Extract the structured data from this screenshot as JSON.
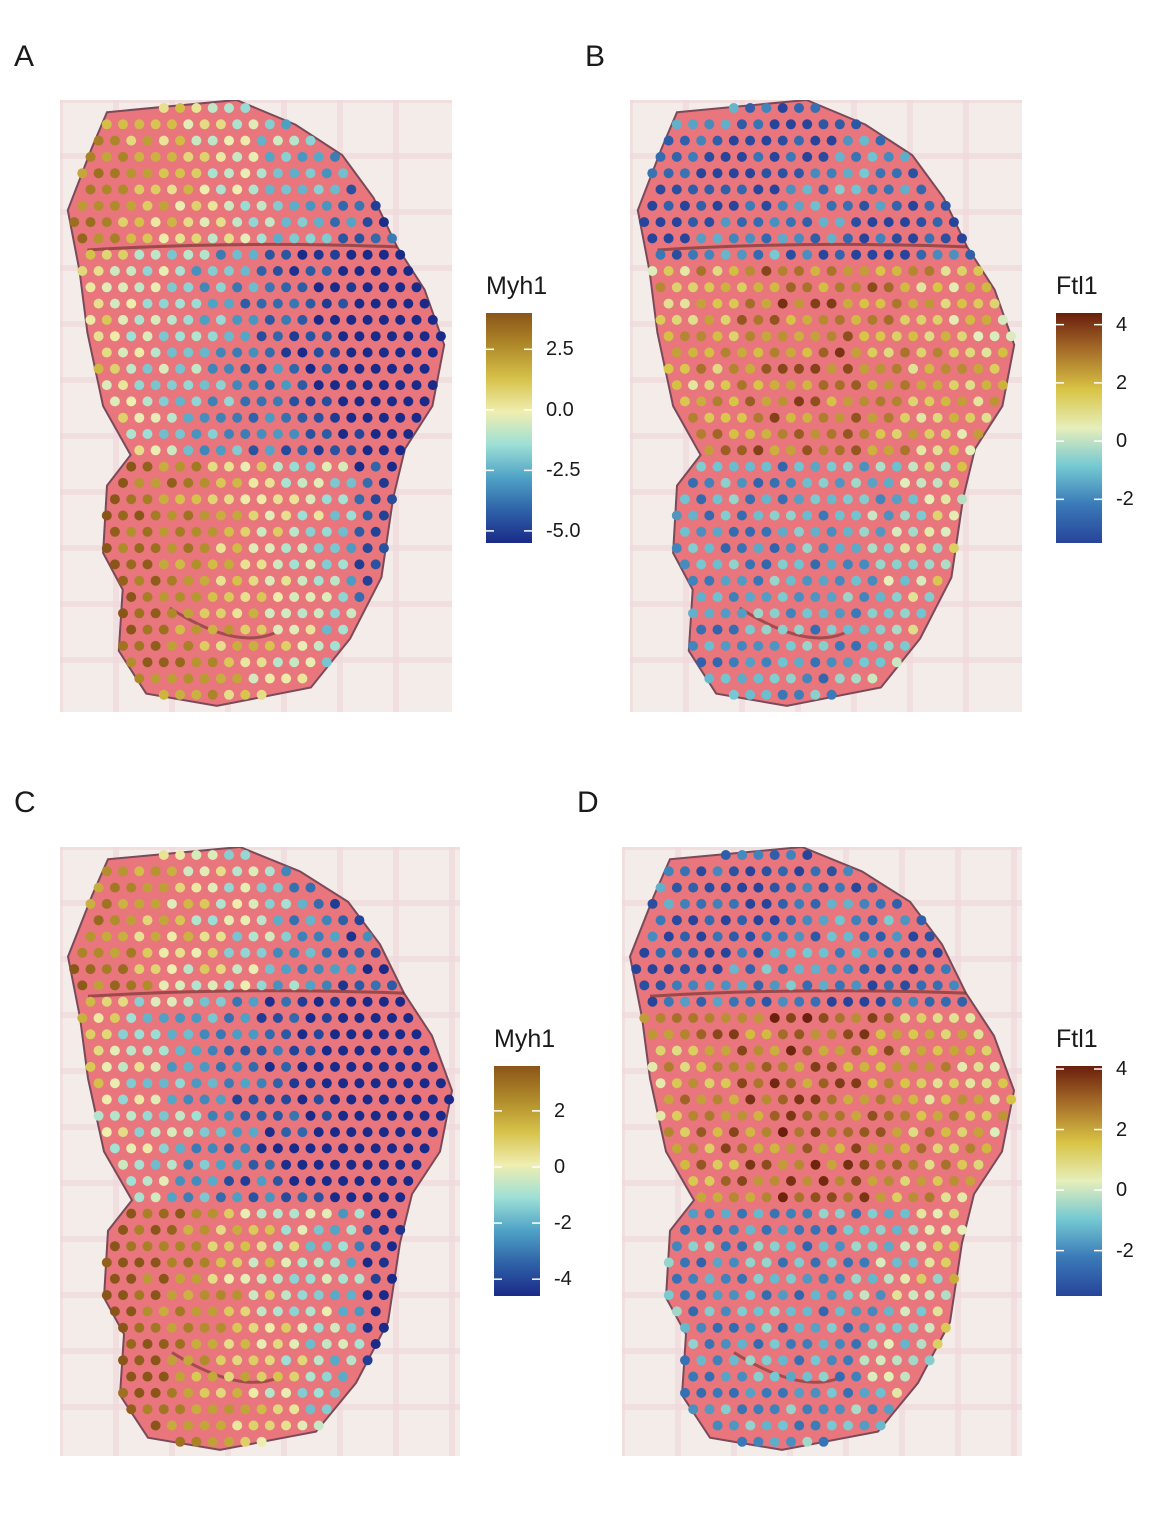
{
  "colors": {
    "myh1_scale": [
      "#1a2a88",
      "#2f62a8",
      "#4fa3c6",
      "#9ee0d6",
      "#f0eeb0",
      "#d6c24a",
      "#b08a2a",
      "#8a5518"
    ],
    "ftl1_scale": [
      "#27449a",
      "#3a7ab8",
      "#74c8d2",
      "#e6efbb",
      "#d8c445",
      "#a8702a",
      "#6a1e0c"
    ],
    "tissue_pink": "#e8767c",
    "background_grid": "#f3ece8"
  },
  "chart_data": [
    {
      "type": "scatter",
      "panel_label": "A",
      "legend_title": "Myh1",
      "colorbar_range": [
        -5.5,
        4
      ],
      "tick_values": [
        2.5,
        0.0,
        -2.5,
        -5.0
      ],
      "tick_labels": [
        "2.5",
        "0.0",
        "-2.5",
        "-5.0"
      ]
    },
    {
      "type": "scatter",
      "panel_label": "B",
      "legend_title": "Ftl1",
      "colorbar_range": [
        -3.5,
        4.4
      ],
      "tick_values": [
        4,
        2,
        0,
        -2
      ],
      "tick_labels": [
        "4",
        "2",
        "0",
        "-2"
      ]
    },
    {
      "type": "scatter",
      "panel_label": "C",
      "legend_title": "Myh1",
      "colorbar_range": [
        -4.6,
        3.6
      ],
      "tick_values": [
        2,
        0,
        -2,
        -4
      ],
      "tick_labels": [
        "2",
        "0",
        "-2",
        "-4"
      ]
    },
    {
      "type": "scatter",
      "panel_label": "D",
      "legend_title": "Ftl1",
      "colorbar_range": [
        -3.5,
        4.1
      ],
      "tick_values": [
        4,
        2,
        0,
        -2
      ],
      "tick_labels": [
        "4",
        "2",
        "0",
        "-2"
      ]
    }
  ]
}
